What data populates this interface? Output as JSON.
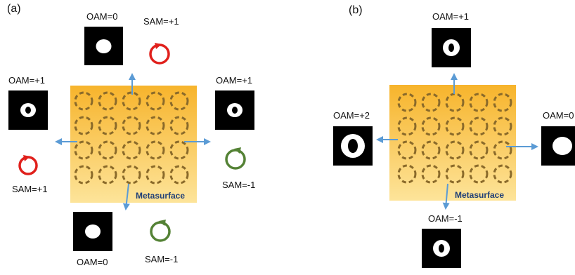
{
  "panels": [
    {
      "id": "a",
      "label": "(a)",
      "metasurface_label": "Metasurface",
      "outputs": {
        "top": {
          "oam": "OAM=0",
          "sam": "SAM=+1",
          "beam": "spot"
        },
        "left": {
          "oam": "OAM=+1",
          "sam": "SAM=+1",
          "beam": "ring"
        },
        "right": {
          "oam": "OAM=+1",
          "sam": "SAM=-1",
          "beam": "ring"
        },
        "bottom": {
          "oam": "OAM=0",
          "sam": "SAM=-1",
          "beam": "spot"
        }
      }
    },
    {
      "id": "b",
      "label": "(b)",
      "metasurface_label": "Metasurface",
      "outputs": {
        "top": {
          "oam": "OAM=+1",
          "beam": "ring"
        },
        "left": {
          "oam": "OAM=+2",
          "beam": "ring-large"
        },
        "right": {
          "oam": "OAM=0",
          "beam": "spot"
        },
        "bottom": {
          "oam": "OAM=-1",
          "beam": "ring"
        }
      }
    }
  ],
  "colors": {
    "metasurface_top": "#f7b42c",
    "metasurface_bottom": "#fde49a",
    "ring_elements": "#8a6a2a",
    "arrow": "#5b9bd5",
    "sam_plus": "#e0201c",
    "sam_minus": "#548235",
    "beam_bg": "#000000",
    "beam_spot": "#ffffff"
  }
}
